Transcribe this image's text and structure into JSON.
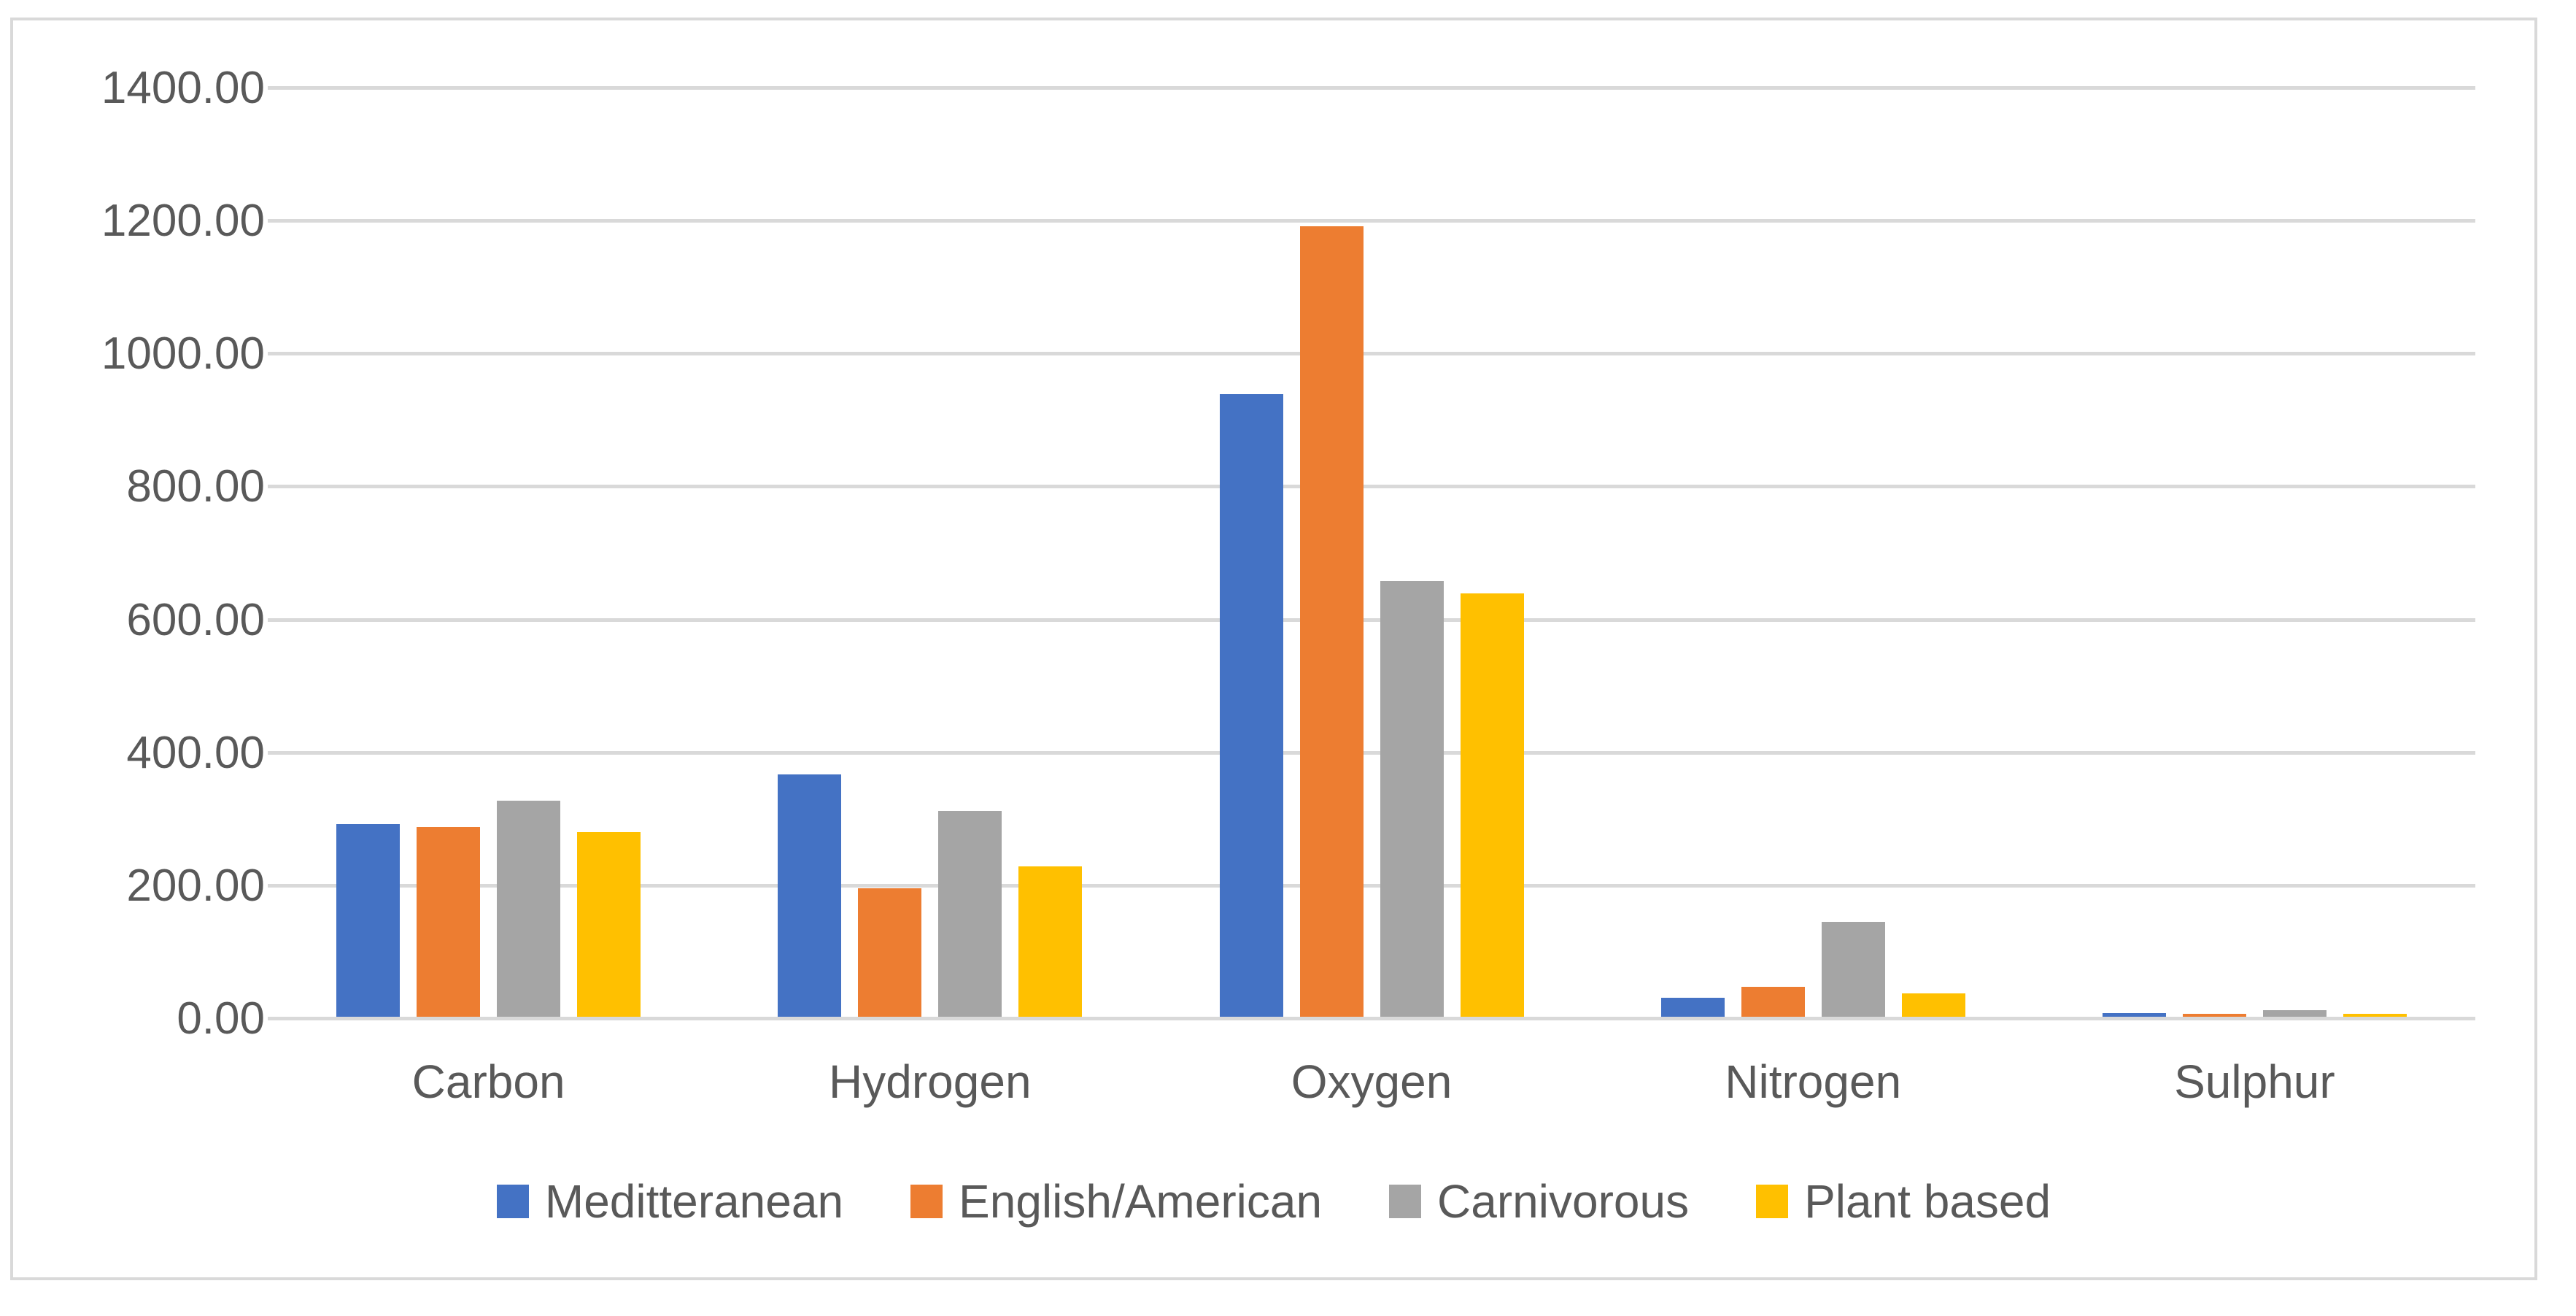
{
  "chart_data": {
    "type": "bar",
    "title": "",
    "categories": [
      "Carbon",
      "Hydrogen",
      "Oxygen",
      "Nitrogen",
      "Sulphur"
    ],
    "series": [
      {
        "name": "Meditteranean",
        "color": "#4472C4",
        "values": [
          290,
          365,
          937,
          29,
          5
        ]
      },
      {
        "name": "English/American",
        "color": "#ED7D31",
        "values": [
          285,
          193,
          1189,
          45,
          4
        ]
      },
      {
        "name": "Carnivorous",
        "color": "#A5A5A5",
        "values": [
          325,
          310,
          655,
          143,
          10
        ]
      },
      {
        "name": "Plant based",
        "color": "#FFC000",
        "values": [
          278,
          226,
          637,
          35,
          4
        ]
      }
    ],
    "y_axis": {
      "min": 0,
      "max": 1400,
      "step": 200,
      "tick_labels": [
        "0.00",
        "200.00",
        "400.00",
        "600.00",
        "800.00",
        "1000.00",
        "1200.00",
        "1400.00"
      ]
    },
    "x_axis_label": "",
    "y_axis_label": "",
    "grid": true,
    "legend_position": "bottom",
    "style": {
      "gridline_color": "#d9d9d9",
      "axis_line_color": "#d9d9d9",
      "text_color": "#595959",
      "frame_border_color": "#d9d9d9",
      "background": "#ffffff"
    }
  }
}
